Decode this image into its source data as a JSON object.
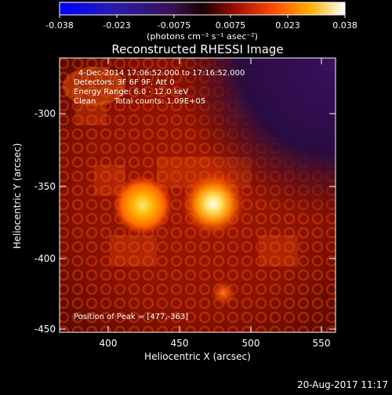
{
  "colorbar": {
    "ticks": [
      "-0.038",
      "-0.023",
      "-0.0075",
      "0.0075",
      "0.023",
      "0.038"
    ],
    "unit_label": "(photons cm⁻² s⁻¹ asec⁻²)"
  },
  "title": "Reconstructed RHESSI Image",
  "info": {
    "line1": "4-Dec-2014 17:06:52.000 to 17:16:52.000",
    "line2": "Detectors: 3F 6F 9F, Att 0",
    "line3": "Energy Range: 6.0 - 12.0 keV",
    "line4_left": "Clean",
    "line4_right": "Total counts: 1.09E+05"
  },
  "peak_text": "Position of Peak = [477,-363]",
  "axes": {
    "xlabel": "Heliocentric X (arcsec)",
    "ylabel": "Heliocentric Y (arcsec)",
    "x_ticks": [
      "400",
      "450",
      "500",
      "550"
    ],
    "y_ticks": [
      "-300",
      "-350",
      "-400",
      "-450"
    ]
  },
  "timestamp": "20-Aug-2017 11:17"
}
